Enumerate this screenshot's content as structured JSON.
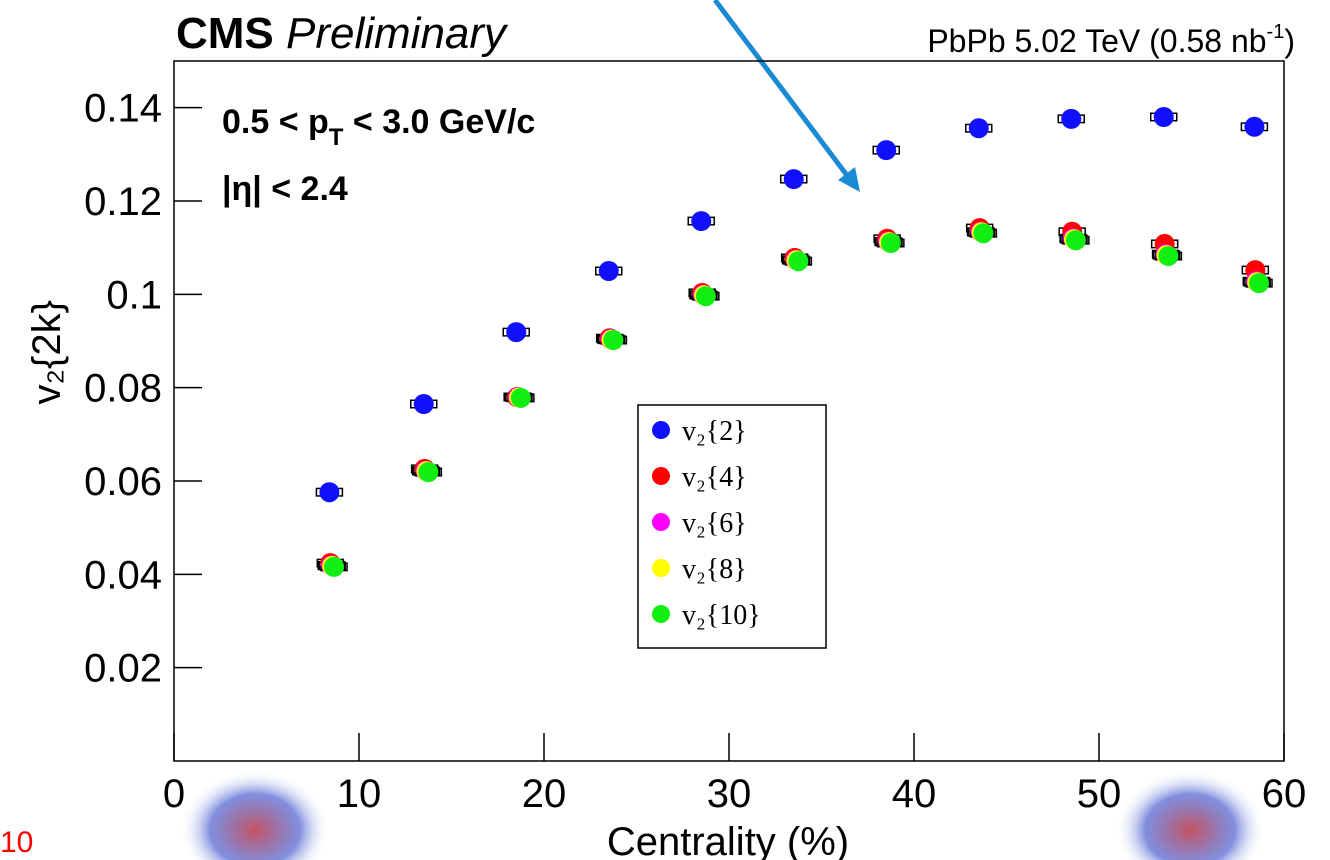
{
  "chart_data": {
    "type": "scatter",
    "title_bold": "CMS",
    "title_italic": "Preliminary",
    "dataset": {
      "main": "PbPb 5.02 TeV (0.58 nb",
      "sup": "-1",
      "end": ")"
    },
    "cut_pt": {
      "a": "0.5 < p",
      "sub": "T",
      "b": " < 3.0 GeV/c"
    },
    "cut_eta": "|η| < 2.4",
    "x_label": "Centrality (%)",
    "y_label": "v₂{2k}",
    "slide_number": "10",
    "xlim": [
      0,
      60
    ],
    "ylim": [
      0,
      0.15
    ],
    "xticks": [
      0,
      10,
      20,
      30,
      40,
      50,
      60
    ],
    "yticks": [
      0.02,
      0.04,
      0.06,
      0.08,
      {
        "value": 0.1,
        "label": "0.1"
      },
      0.12,
      0.14
    ],
    "series": [
      {
        "name": "v₂{2}",
        "color": "#1010ff",
        "x": [
          8.4,
          13.5,
          18.5,
          23.5,
          28.5,
          33.5,
          38.5,
          43.5,
          48.5,
          53.5,
          58.4
        ],
        "values": [
          0.0576,
          0.0765,
          0.0919,
          0.105,
          0.1157,
          0.1247,
          0.1309,
          0.1356,
          0.1376,
          0.138,
          0.1359
        ],
        "syst": [
          0.0008,
          0.0008,
          0.0008,
          0.0008,
          0.0008,
          0.0008,
          0.0008,
          0.0008,
          0.0008,
          0.0008,
          0.0008
        ]
      },
      {
        "name": "v₂{4}",
        "color": "#ff0000",
        "x": [
          8.45,
          13.55,
          18.55,
          23.55,
          28.55,
          33.55,
          38.55,
          43.55,
          48.55,
          53.55,
          58.45
        ],
        "values": [
          0.0424,
          0.0626,
          0.078,
          0.0906,
          0.1003,
          0.1078,
          0.1119,
          0.1142,
          0.1134,
          0.1108,
          0.1052
        ],
        "syst": [
          0.0008,
          0.0008,
          0.0008,
          0.0008,
          0.0008,
          0.0008,
          0.0008,
          0.0008,
          0.0008,
          0.0008,
          0.0008
        ]
      },
      {
        "name": "v₂{6}",
        "color": "#ff00ff",
        "x": [
          8.5,
          13.6,
          18.6,
          23.6,
          28.6,
          33.6,
          38.6,
          43.6,
          48.6,
          53.6,
          58.5
        ],
        "values": [
          0.0419,
          0.0622,
          0.078,
          0.0904,
          0.0999,
          0.1074,
          0.1113,
          0.1134,
          0.112,
          0.1086,
          0.1028
        ],
        "syst": [
          0.0008,
          0.0008,
          0.0008,
          0.0008,
          0.0008,
          0.0008,
          0.0008,
          0.0008,
          0.0008,
          0.0008,
          0.0008
        ]
      },
      {
        "name": "v₂{8}",
        "color": "#ffff00",
        "x": [
          8.55,
          13.65,
          18.65,
          23.65,
          28.65,
          33.65,
          38.65,
          43.65,
          48.65,
          53.65,
          58.55
        ],
        "values": [
          0.0418,
          0.0621,
          0.0779,
          0.0903,
          0.0998,
          0.1073,
          0.1112,
          0.1133,
          0.1118,
          0.1084,
          0.1026
        ],
        "syst": [
          0.0008,
          0.0008,
          0.0008,
          0.0008,
          0.0008,
          0.0008,
          0.0008,
          0.0008,
          0.0008,
          0.0008,
          0.0008
        ]
      },
      {
        "name": "v₂{10}",
        "color": "#11ee11",
        "x": [
          8.65,
          13.75,
          18.75,
          23.75,
          28.75,
          33.75,
          38.75,
          43.75,
          48.75,
          53.75,
          58.65
        ],
        "values": [
          0.0416,
          0.0619,
          0.0778,
          0.0902,
          0.0996,
          0.1071,
          0.111,
          0.1131,
          0.1116,
          0.1082,
          0.1024
        ],
        "syst": [
          0.0008,
          0.0008,
          0.0008,
          0.0008,
          0.0008,
          0.0008,
          0.0008,
          0.0008,
          0.0008,
          0.0008,
          0.0008
        ]
      }
    ]
  }
}
